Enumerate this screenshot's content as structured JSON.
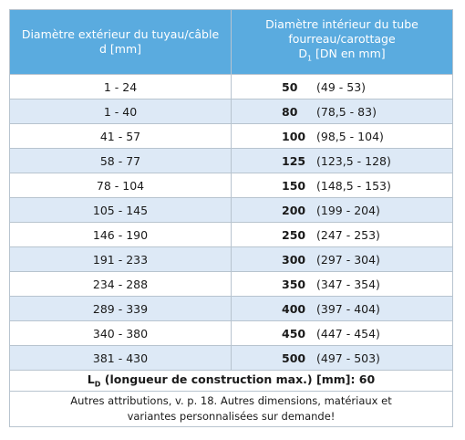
{
  "header": {
    "col1": [
      "Diamètre extérieur du tuyau/câble",
      "d [mm]"
    ],
    "col2": [
      "Diamètre intérieur du tube",
      "fourreau/carottage"
    ],
    "col2_unit": {
      "symbol": "D",
      "subscript": "1",
      "text": " [DN en mm]"
    }
  },
  "rows": [
    [
      "1 - 24",
      "50",
      "(49 - 53)"
    ],
    [
      "1 - 40",
      "80",
      "(78,5 - 83)"
    ],
    [
      "41 - 57",
      "100",
      "(98,5 - 104)"
    ],
    [
      "58 - 77",
      "125",
      "(123,5 - 128)"
    ],
    [
      "78 - 104",
      "150",
      "(148,5 - 153)"
    ],
    [
      "105 - 145",
      "200",
      "(199 - 204)"
    ],
    [
      "146 - 190",
      "250",
      "(247 - 253)"
    ],
    [
      "191 - 233",
      "300",
      "(297 - 304)"
    ],
    [
      "234 - 288",
      "350",
      "(347 - 354)"
    ],
    [
      "289 - 339",
      "400",
      "(397 - 404)"
    ],
    [
      "340 - 380",
      "450",
      "(447 - 454)"
    ],
    [
      "381 - 430",
      "500",
      "(497 - 503)"
    ]
  ],
  "length": {
    "symbol": "L",
    "subscript": "D",
    "text": " (longueur de construction max.) [mm]: 60"
  },
  "note": [
    "Autres attributions,  v. p. 18. Autres dimensions, matériaux et",
    "variantes personnalisées sur demande!"
  ]
}
